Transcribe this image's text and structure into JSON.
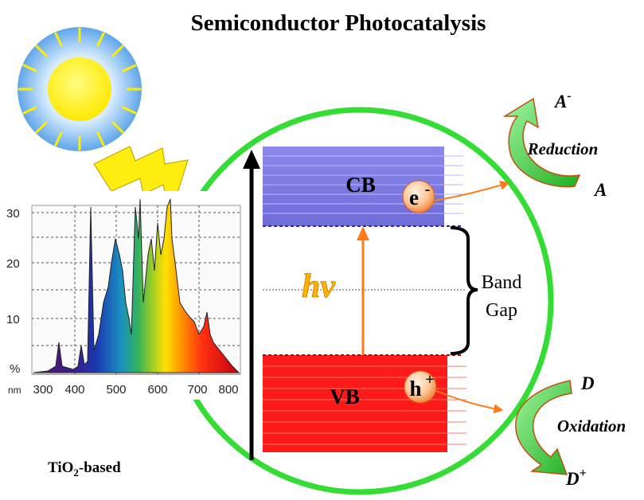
{
  "title": "Semiconductor Photocatalysis",
  "bands": {
    "cb_label": "CB",
    "vb_label": "VB",
    "electron": "e",
    "electron_charge": "-",
    "hole": "h",
    "hole_charge": "+",
    "photon_label": "hv",
    "gap_label_line1": "Band",
    "gap_label_line2": "Gap"
  },
  "reactions": {
    "reduction_label": "Reduction",
    "oxidation_label": "Oxidation",
    "acceptor": "A",
    "acceptor_product": "A",
    "acceptor_product_charge": "-",
    "donor": "D",
    "donor_product": "D",
    "donor_product_charge": "+"
  },
  "spectrum": {
    "y_ticks": [
      "30",
      "20",
      "10",
      "%"
    ],
    "x_unit": "nm",
    "x_ticks": [
      "300",
      "400",
      "500",
      "600",
      "700",
      "800"
    ]
  },
  "material": {
    "name_prefix": "TiO",
    "name_subscript": "2",
    "name_suffix": "-based"
  },
  "colors": {
    "circle": "#33dd33",
    "cb": "#7f7be0",
    "vb": "#ff1a1a",
    "photon": "#ff7a1a",
    "hv_text": "#ffb000",
    "arrow_green": "#2ecc2e",
    "sun": "#ffee00",
    "sun_halo": "#7db7ef"
  }
}
